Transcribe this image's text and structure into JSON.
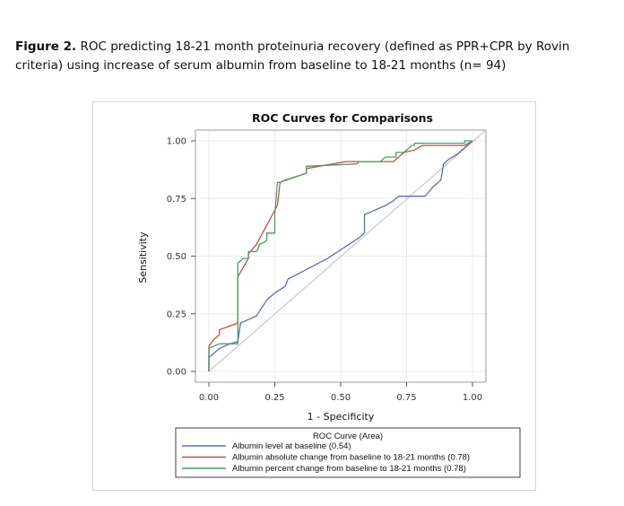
{
  "caption": {
    "label": "Figure 2.",
    "text": "ROC predicting 18-21 month proteinuria recovery (defined as PPR+CPR by Rovin criteria) using increase of serum albumin from baseline to 18-21 months (n= 94)"
  },
  "chart_data": {
    "type": "line",
    "title": "ROC Curves for Comparisons",
    "xlabel": "1 - Specificity",
    "ylabel": "Sensitivity",
    "xlim": [
      0,
      1
    ],
    "ylim": [
      0,
      1
    ],
    "xticks": [
      "0.00",
      "0.25",
      "0.50",
      "0.75",
      "1.00"
    ],
    "yticks": [
      "0.00",
      "0.25",
      "0.50",
      "0.75",
      "1.00"
    ],
    "grid": true,
    "legend": {
      "title": "ROC Curve (Area)",
      "placement": "bottom"
    },
    "series": [
      {
        "name": "Albumin level at baseline (0.54)",
        "color": "#5b6fae",
        "x": [
          0,
          0,
          0.02,
          0.04,
          0.08,
          0.11,
          0.12,
          0.18,
          0.22,
          0.25,
          0.29,
          0.3,
          0.45,
          0.57,
          0.59,
          0.59,
          0.67,
          0.7,
          0.72,
          0.75,
          0.82,
          0.85,
          0.88,
          0.89,
          0.91,
          0.94,
          0.95,
          0.97,
          1.0
        ],
        "y": [
          0,
          0.06,
          0.08,
          0.1,
          0.12,
          0.13,
          0.21,
          0.24,
          0.31,
          0.34,
          0.37,
          0.4,
          0.49,
          0.58,
          0.6,
          0.68,
          0.72,
          0.74,
          0.76,
          0.76,
          0.76,
          0.8,
          0.83,
          0.9,
          0.92,
          0.94,
          0.95,
          0.97,
          1.0
        ]
      },
      {
        "name": "Albumin absolute change from baseline to 18-21 months (0.78)",
        "color": "#c0504d",
        "x": [
          0,
          0,
          0.02,
          0.04,
          0.04,
          0.11,
          0.11,
          0.15,
          0.15,
          0.18,
          0.26,
          0.27,
          0.29,
          0.37,
          0.37,
          0.52,
          0.65,
          0.7,
          0.71,
          0.74,
          0.78,
          0.81,
          0.82,
          0.89,
          0.9,
          0.97,
          1.0
        ],
        "y": [
          0,
          0.11,
          0.14,
          0.16,
          0.18,
          0.21,
          0.41,
          0.49,
          0.51,
          0.55,
          0.72,
          0.82,
          0.83,
          0.86,
          0.88,
          0.91,
          0.91,
          0.91,
          0.92,
          0.95,
          0.96,
          0.98,
          0.98,
          0.98,
          0.98,
          0.98,
          1.0
        ]
      },
      {
        "name": "Albumin percent change from baseline to 18-21 months (0.78)",
        "color": "#4e9a64",
        "x": [
          0,
          0,
          0.02,
          0.04,
          0.07,
          0.08,
          0.11,
          0.11,
          0.13,
          0.15,
          0.15,
          0.18,
          0.19,
          0.19,
          0.21,
          0.22,
          0.22,
          0.25,
          0.25,
          0.26,
          0.27,
          0.37,
          0.37,
          0.56,
          0.57,
          0.65,
          0.67,
          0.71,
          0.71,
          0.72,
          0.74,
          0.77,
          0.78,
          0.78,
          0.93,
          0.97,
          0.97,
          1.0,
          1.0
        ],
        "y": [
          0,
          0.1,
          0.11,
          0.12,
          0.12,
          0.12,
          0.12,
          0.47,
          0.49,
          0.49,
          0.52,
          0.52,
          0.54,
          0.55,
          0.56,
          0.57,
          0.6,
          0.6,
          0.68,
          0.82,
          0.82,
          0.86,
          0.89,
          0.9,
          0.91,
          0.91,
          0.93,
          0.93,
          0.95,
          0.95,
          0.95,
          0.98,
          0.98,
          0.99,
          0.99,
          0.99,
          1.0,
          1.0,
          1.0
        ]
      }
    ]
  }
}
